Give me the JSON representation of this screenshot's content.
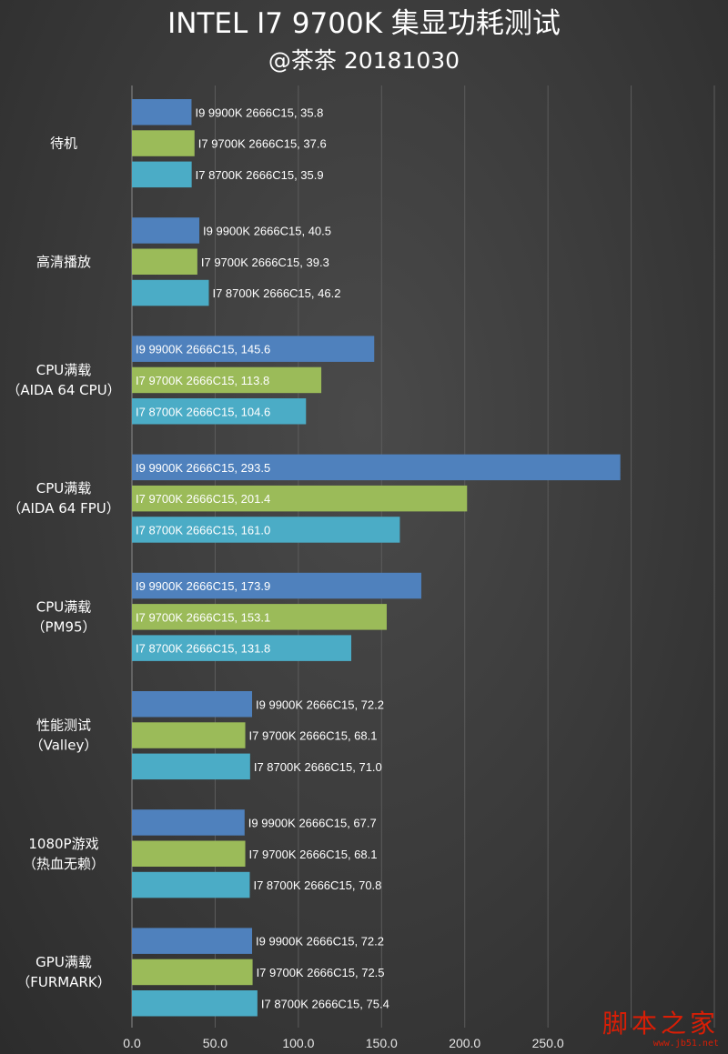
{
  "chart_data": {
    "type": "bar",
    "orientation": "horizontal",
    "title": "INTEL I7 9700K 集显功耗测试",
    "subtitle": "@茶茶 20181030",
    "categories": [
      [
        "待机"
      ],
      [
        "高清播放"
      ],
      [
        "CPU满载",
        "（AIDA 64 CPU）"
      ],
      [
        "CPU满载",
        "（AIDA 64 FPU）"
      ],
      [
        "CPU满载",
        "（PM95）"
      ],
      [
        "性能测试",
        "（Valley）"
      ],
      [
        "1080P游戏",
        "（热血无赖）"
      ],
      [
        "GPU满载",
        "（FURMARK）"
      ]
    ],
    "series": [
      {
        "name": "I9 9900K 2666C15",
        "color": "#4f81bd",
        "values": [
          35.8,
          40.5,
          145.6,
          293.5,
          173.9,
          72.2,
          67.7,
          72.2
        ]
      },
      {
        "name": "I7 9700K 2666C15",
        "color": "#9bbb59",
        "values": [
          37.6,
          39.3,
          113.8,
          201.4,
          153.1,
          68.1,
          68.1,
          72.5
        ]
      },
      {
        "name": "I7 8700K 2666C15",
        "color": "#4bacc6",
        "values": [
          35.9,
          46.2,
          104.6,
          161.0,
          131.8,
          71.0,
          70.8,
          75.4
        ]
      }
    ],
    "xlim": [
      0,
      350
    ],
    "xticks": [
      "0.0",
      "50.0",
      "100.0",
      "150.0",
      "200.0",
      "250.0"
    ],
    "tick_values": [
      0,
      50,
      100,
      150,
      200,
      250
    ],
    "grid": true,
    "legend": "none"
  },
  "watermark": {
    "main": "脚本之家",
    "url": "www.jb51.net"
  }
}
